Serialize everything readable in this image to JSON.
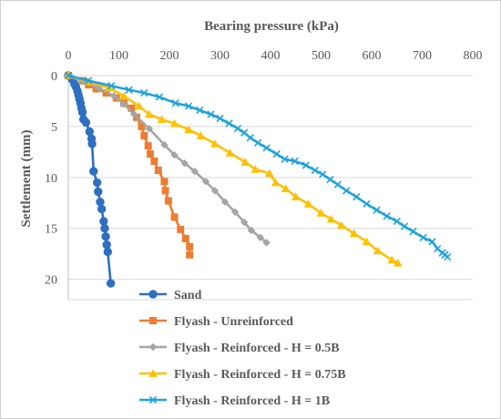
{
  "chart_data": {
    "type": "scatter",
    "title": "",
    "xlabel": "Bearing pressure (kPa)",
    "ylabel": "Settlement (mm)",
    "x_axis_position": "top",
    "y_axis_inverted": true,
    "xlim": [
      0,
      800
    ],
    "ylim": [
      0,
      22
    ],
    "x_ticks": [
      0,
      100,
      200,
      300,
      400,
      500,
      600,
      700,
      800
    ],
    "y_ticks": [
      0,
      5,
      10,
      15,
      20
    ],
    "x_tick_labels": [
      "0",
      "100",
      "200",
      "300",
      "400",
      "500",
      "600",
      "700",
      "800"
    ],
    "y_tick_labels": [
      "0",
      "5",
      "10",
      "15",
      "20"
    ],
    "grid": {
      "horizontal": true,
      "vertical": false
    },
    "legend_position": "bottom-left",
    "series": [
      {
        "name": "Sand",
        "color": "#2E6FC0",
        "marker": "circle",
        "points": [
          [
            0,
            0
          ],
          [
            8,
            0.4
          ],
          [
            12,
            0.8
          ],
          [
            15,
            1.1
          ],
          [
            18,
            1.5
          ],
          [
            20,
            1.9
          ],
          [
            22,
            2.3
          ],
          [
            24,
            2.7
          ],
          [
            26,
            3.2
          ],
          [
            28,
            3.6
          ],
          [
            30,
            4.3
          ],
          [
            35,
            4.6
          ],
          [
            42,
            5.5
          ],
          [
            46,
            6.2
          ],
          [
            47,
            6.7
          ],
          [
            50,
            9.4
          ],
          [
            57,
            10.5
          ],
          [
            59,
            11.4
          ],
          [
            63,
            12.4
          ],
          [
            66,
            13.1
          ],
          [
            70,
            14.3
          ],
          [
            72,
            15
          ],
          [
            74,
            15.8
          ],
          [
            76,
            16.6
          ],
          [
            78,
            17.3
          ],
          [
            84,
            20.4
          ]
        ]
      },
      {
        "name": "Flyash - Unreinforced",
        "color": "#ED7D31",
        "marker": "square",
        "points": [
          [
            0,
            0
          ],
          [
            28,
            0.5
          ],
          [
            40,
            0.9
          ],
          [
            55,
            1.3
          ],
          [
            75,
            1.7
          ],
          [
            95,
            2.2
          ],
          [
            110,
            2.7
          ],
          [
            125,
            3.2
          ],
          [
            135,
            4.1
          ],
          [
            145,
            5
          ],
          [
            150,
            5.9
          ],
          [
            158,
            6.9
          ],
          [
            162,
            7.7
          ],
          [
            170,
            8.4
          ],
          [
            178,
            9.3
          ],
          [
            190,
            10.4
          ],
          [
            192,
            11.3
          ],
          [
            198,
            12.3
          ],
          [
            210,
            13.9
          ],
          [
            222,
            15.1
          ],
          [
            232,
            16
          ],
          [
            240,
            16.8
          ],
          [
            240,
            17.6
          ]
        ]
      },
      {
        "name": "Flyash - Reinforced - H = 0.5B",
        "color": "#A5A5A5",
        "marker": "diamond",
        "points": [
          [
            0,
            0
          ],
          [
            30,
            0.6
          ],
          [
            60,
            1.2
          ],
          [
            90,
            2
          ],
          [
            110,
            2.8
          ],
          [
            130,
            3.8
          ],
          [
            160,
            5.2
          ],
          [
            190,
            6.8
          ],
          [
            210,
            7.8
          ],
          [
            230,
            8.6
          ],
          [
            250,
            9.4
          ],
          [
            272,
            10.4
          ],
          [
            290,
            11.3
          ],
          [
            310,
            12.4
          ],
          [
            330,
            13.4
          ],
          [
            348,
            14.4
          ],
          [
            362,
            15.2
          ],
          [
            380,
            15.9
          ],
          [
            392,
            16.4
          ]
        ]
      },
      {
        "name": "Flyash - Reinforced - H = 0.75B",
        "color": "#FFC000",
        "marker": "triangle",
        "points": [
          [
            0,
            0
          ],
          [
            40,
            0.6
          ],
          [
            80,
            1.2
          ],
          [
            110,
            2
          ],
          [
            140,
            3
          ],
          [
            160,
            3.8
          ],
          [
            185,
            4.3
          ],
          [
            210,
            4.7
          ],
          [
            238,
            5.3
          ],
          [
            262,
            5.9
          ],
          [
            290,
            6.7
          ],
          [
            320,
            7.6
          ],
          [
            350,
            8.5
          ],
          [
            370,
            9.2
          ],
          [
            398,
            9.6
          ],
          [
            410,
            10.5
          ],
          [
            430,
            11.1
          ],
          [
            450,
            11.9
          ],
          [
            475,
            12.6
          ],
          [
            500,
            13.5
          ],
          [
            520,
            14.1
          ],
          [
            540,
            14.7
          ],
          [
            565,
            15.5
          ],
          [
            590,
            16.3
          ],
          [
            612,
            17.2
          ],
          [
            640,
            18.1
          ],
          [
            652,
            18.4
          ]
        ]
      },
      {
        "name": "Flyash - Reinforced - H = 1B",
        "color": "#1FA2DE",
        "marker": "x",
        "points": [
          [
            0,
            0
          ],
          [
            40,
            0.5
          ],
          [
            85,
            1
          ],
          [
            120,
            1.4
          ],
          [
            150,
            1.7
          ],
          [
            180,
            2.1
          ],
          [
            212,
            2.7
          ],
          [
            238,
            3
          ],
          [
            260,
            3.4
          ],
          [
            282,
            3.8
          ],
          [
            300,
            4.2
          ],
          [
            318,
            4.7
          ],
          [
            335,
            5.2
          ],
          [
            348,
            5.6
          ],
          [
            360,
            6.1
          ],
          [
            375,
            6.6
          ],
          [
            392,
            7.1
          ],
          [
            412,
            7.7
          ],
          [
            428,
            8.2
          ],
          [
            448,
            8.4
          ],
          [
            470,
            8.8
          ],
          [
            488,
            9.3
          ],
          [
            503,
            9.7
          ],
          [
            518,
            10.2
          ],
          [
            533,
            10.7
          ],
          [
            550,
            11.3
          ],
          [
            570,
            11.9
          ],
          [
            590,
            12.6
          ],
          [
            610,
            13.2
          ],
          [
            630,
            13.8
          ],
          [
            650,
            14.3
          ],
          [
            665,
            14.8
          ],
          [
            682,
            15.3
          ],
          [
            702,
            15.9
          ],
          [
            720,
            16.3
          ],
          [
            730,
            17
          ],
          [
            740,
            17.4
          ],
          [
            745,
            17.6
          ],
          [
            750,
            17.8
          ]
        ]
      }
    ]
  }
}
